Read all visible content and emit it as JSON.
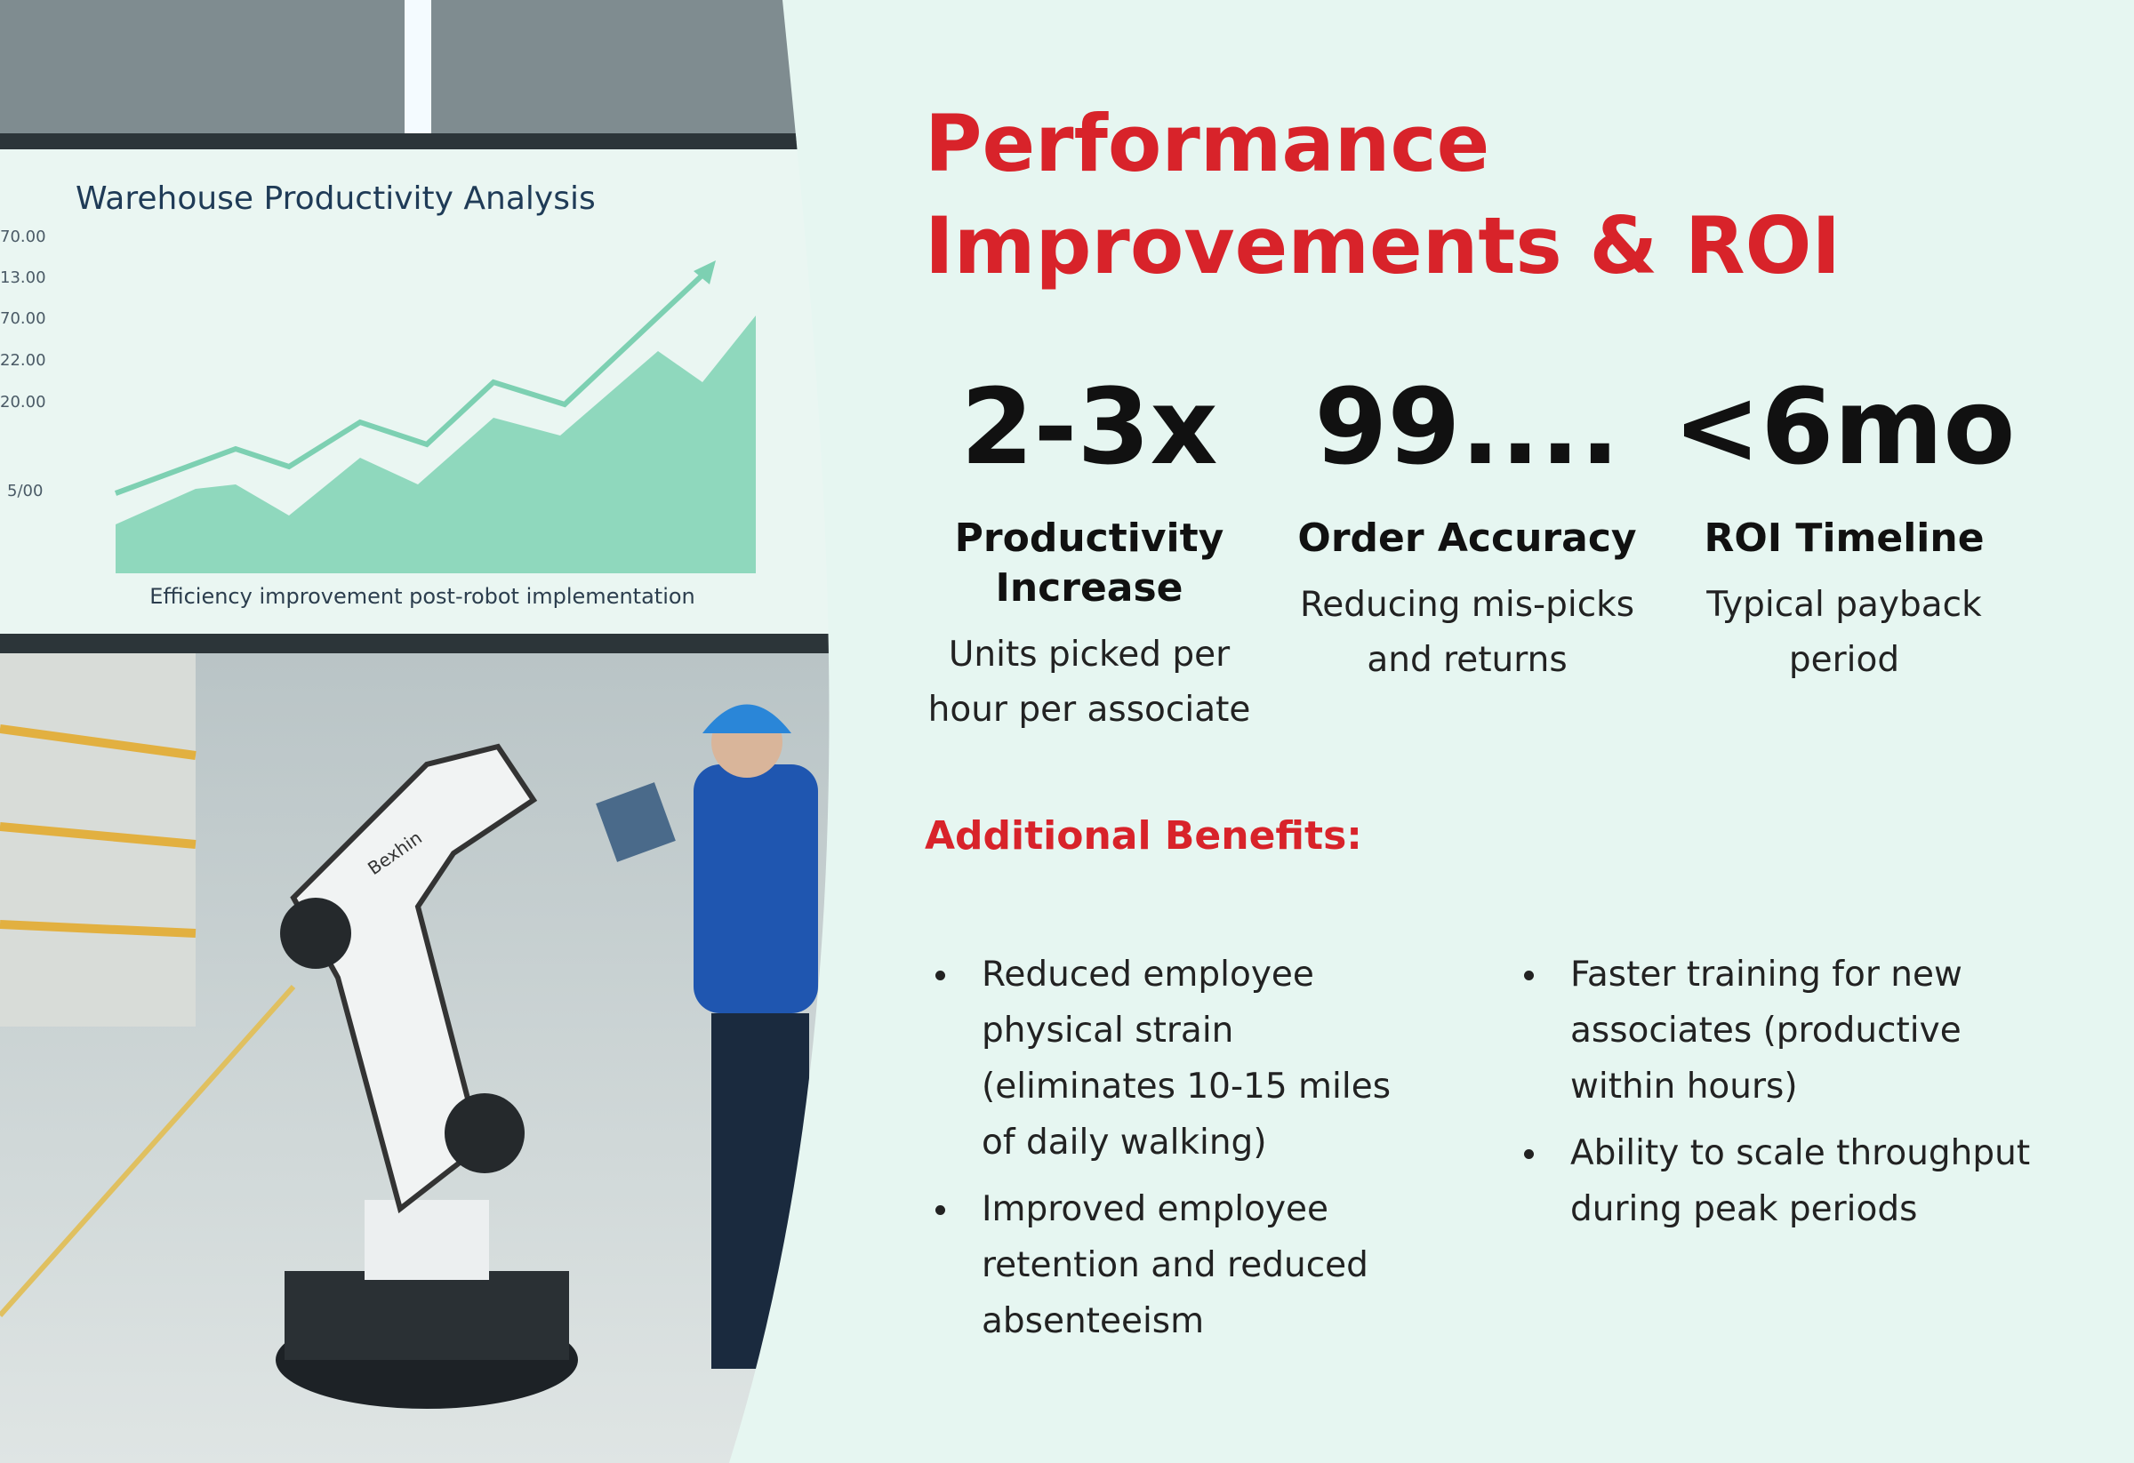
{
  "image": {
    "screen_title": "Warehouse Productivity Analysis",
    "y_labels": [
      "70.00",
      "13.00",
      "70.00",
      "22.00",
      "20.00",
      "5/00"
    ],
    "caption": "Efficiency improvement post-robot implementation",
    "robot_label": "Bexhin"
  },
  "title": {
    "line1": "Performance",
    "line2": "Improvements & ROI"
  },
  "stats": [
    {
      "value": "2-3x",
      "label": "Productivity Increase",
      "description": "Units picked per hour per associate"
    },
    {
      "value": "99....",
      "label": "Order Accuracy",
      "description": "Reducing mis-picks and returns"
    },
    {
      "value": "<6mo",
      "label": "ROI Timeline",
      "description": "Typical payback period"
    }
  ],
  "benefits": {
    "heading": "Additional Benefits:",
    "columns": [
      [
        "Reduced employee physical strain (eliminates 10-15 miles of daily walking)",
        "Improved employee retention and reduced absenteeism"
      ],
      [
        "Faster training for new associates (productive within hours)",
        "Ability to scale throughput during peak periods"
      ]
    ]
  }
}
